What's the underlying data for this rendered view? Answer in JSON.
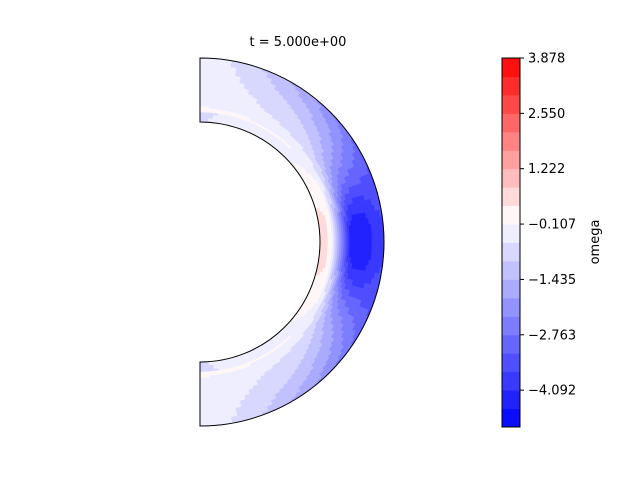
{
  "chart_data": {
    "type": "contour",
    "title": "t = 5.000e+00",
    "domain": "half-annulus (meridional slice)",
    "colorbar": {
      "label": "omega",
      "colormap": "bwr",
      "vmin": -4.976,
      "vmax": 3.878,
      "levels": 20,
      "ticks": [
        3.878,
        2.55,
        1.222,
        -0.107,
        -1.435,
        -2.763,
        -4.092
      ],
      "tick_labels": [
        "3.878",
        "2.550",
        "1.222",
        "−0.107",
        "−1.435",
        "−2.763",
        "−4.092"
      ]
    },
    "colors": {
      "negative": "#0000ff",
      "zero": "#ffffff",
      "positive": "#ff0000"
    },
    "field_summary": {
      "equator_inner_max": 0.5,
      "equator_mid_min": -4.5,
      "equator_outer": -3.7,
      "pole_value": -0.6
    }
  }
}
